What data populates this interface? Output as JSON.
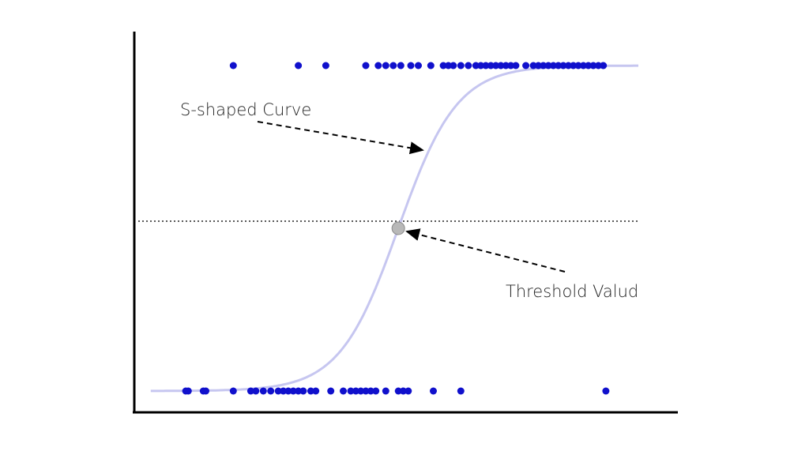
{
  "chart_data": {
    "type": "scatter",
    "title": "",
    "xlabel": "",
    "ylabel": "",
    "xlim": [
      0,
      100
    ],
    "ylim": [
      0,
      1
    ],
    "grid": false,
    "series": [
      {
        "type": "scatter",
        "color": "#1010cc",
        "points": [
          [
            19,
            1
          ],
          [
            32,
            1
          ],
          [
            37.5,
            1
          ],
          [
            45.5,
            1
          ],
          [
            48,
            1
          ],
          [
            49.5,
            1
          ],
          [
            51,
            1
          ],
          [
            52.5,
            1
          ],
          [
            54.5,
            1
          ],
          [
            56,
            1
          ],
          [
            58.5,
            1
          ],
          [
            61,
            1
          ],
          [
            62,
            1
          ],
          [
            63,
            1
          ],
          [
            64.5,
            1
          ],
          [
            66,
            1
          ],
          [
            67.5,
            1
          ],
          [
            68.5,
            1
          ],
          [
            69.5,
            1
          ],
          [
            70.5,
            1
          ],
          [
            71.5,
            1
          ],
          [
            72.5,
            1
          ],
          [
            73.5,
            1
          ],
          [
            74.5,
            1
          ],
          [
            75.5,
            1
          ],
          [
            77.5,
            1
          ],
          [
            79,
            1
          ],
          [
            80,
            1
          ],
          [
            81,
            1
          ],
          [
            82,
            1
          ],
          [
            83,
            1
          ],
          [
            84,
            1
          ],
          [
            85,
            1
          ],
          [
            86,
            1
          ],
          [
            87,
            1
          ],
          [
            88,
            1
          ],
          [
            89,
            1
          ],
          [
            90,
            1
          ],
          [
            91,
            1
          ],
          [
            92,
            1
          ],
          [
            93,
            1
          ],
          [
            9.5,
            0
          ],
          [
            10,
            0
          ],
          [
            13,
            0
          ],
          [
            13.5,
            0
          ],
          [
            19,
            0
          ],
          [
            22.5,
            0
          ],
          [
            23.5,
            0
          ],
          [
            25,
            0
          ],
          [
            26.5,
            0
          ],
          [
            28,
            0
          ],
          [
            29,
            0
          ],
          [
            30,
            0
          ],
          [
            31,
            0
          ],
          [
            32,
            0
          ],
          [
            33,
            0
          ],
          [
            34.5,
            0
          ],
          [
            35.5,
            0
          ],
          [
            38.5,
            0
          ],
          [
            41,
            0
          ],
          [
            42.5,
            0
          ],
          [
            43.5,
            0
          ],
          [
            44.5,
            0
          ],
          [
            45.5,
            0
          ],
          [
            46.5,
            0
          ],
          [
            47.5,
            0
          ],
          [
            49.5,
            0
          ],
          [
            52,
            0
          ],
          [
            53,
            0
          ],
          [
            54,
            0
          ],
          [
            59,
            0
          ],
          [
            64.5,
            0
          ],
          [
            93.5,
            0
          ]
        ]
      },
      {
        "type": "line",
        "name": "S-shaped Curve",
        "color": "#c6c6f0",
        "function": "sigmoid",
        "midpoint": 52,
        "steepness": 0.17
      }
    ],
    "threshold": {
      "y": 0.5,
      "style": "dotted",
      "x": 52
    },
    "annotations": [
      {
        "text": "S-shaped Curve",
        "target": "curve"
      },
      {
        "text": "Threshold Valud",
        "target": "threshold-point"
      }
    ]
  }
}
